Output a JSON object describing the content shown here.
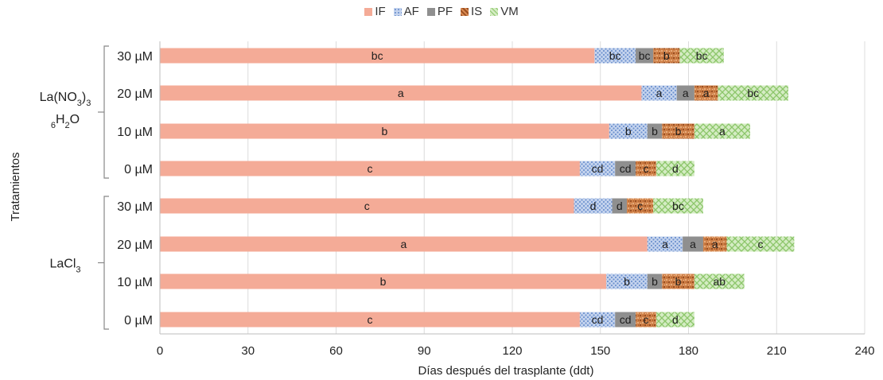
{
  "chart_data": {
    "type": "bar",
    "orientation": "horizontal",
    "stacked": true,
    "xlabel": "Días después del trasplante (ddt)",
    "ylabel": "Tratamientos",
    "xlim": [
      0,
      240
    ],
    "xticks": [
      0,
      30,
      60,
      90,
      120,
      150,
      180,
      210,
      240
    ],
    "grid": "vertical",
    "legend_position": "top-center",
    "groups": [
      {
        "label": "La(NO3)3 6H2O",
        "members": [
          "30 µM",
          "20 µM",
          "10 µM",
          "0 µM"
        ]
      },
      {
        "label": "LaCl3",
        "members": [
          "30 µM",
          "20 µM",
          "10 µM",
          "0 µM"
        ]
      }
    ],
    "categories": [
      "30 µM",
      "20 µM",
      "10 µM",
      "0 µM",
      "30 µM",
      "20 µM",
      "10 µM",
      "0 µM"
    ],
    "series": [
      {
        "name": "IF",
        "color": "#f4ab97",
        "pattern": "solid",
        "values": [
          148,
          164,
          153,
          143,
          141,
          166,
          152,
          143
        ],
        "labels": [
          "bc",
          "a",
          "b",
          "c",
          "c",
          "a",
          "b",
          "c"
        ]
      },
      {
        "name": "AF",
        "color": "#9cb7e0",
        "pattern": "dots",
        "values": [
          14,
          12,
          13,
          12,
          13,
          12,
          14,
          12
        ],
        "labels": [
          "bc",
          "a",
          "b",
          "cd",
          "d",
          "a",
          "b",
          "cd"
        ]
      },
      {
        "name": "PF",
        "color": "#8f8f8f",
        "pattern": "solid",
        "values": [
          6,
          6,
          5,
          7,
          5,
          7,
          5,
          7
        ],
        "labels": [
          "bc",
          "a",
          "b",
          "cd",
          "d",
          "a",
          "b",
          "cd"
        ]
      },
      {
        "name": "IS",
        "color": "#c9703a",
        "pattern": "speckle",
        "values": [
          9,
          8,
          11,
          7,
          9,
          8,
          11,
          7
        ],
        "labels": [
          "b",
          "a",
          "b",
          "c",
          "c",
          "a",
          "b",
          "c"
        ]
      },
      {
        "name": "VM",
        "color": "#a9d58d",
        "pattern": "checks",
        "values": [
          15,
          24,
          19,
          13,
          17,
          23,
          17,
          13
        ],
        "labels": [
          "bc",
          "bc",
          "a",
          "d",
          "bc",
          "c",
          "ab",
          "d"
        ]
      }
    ]
  }
}
